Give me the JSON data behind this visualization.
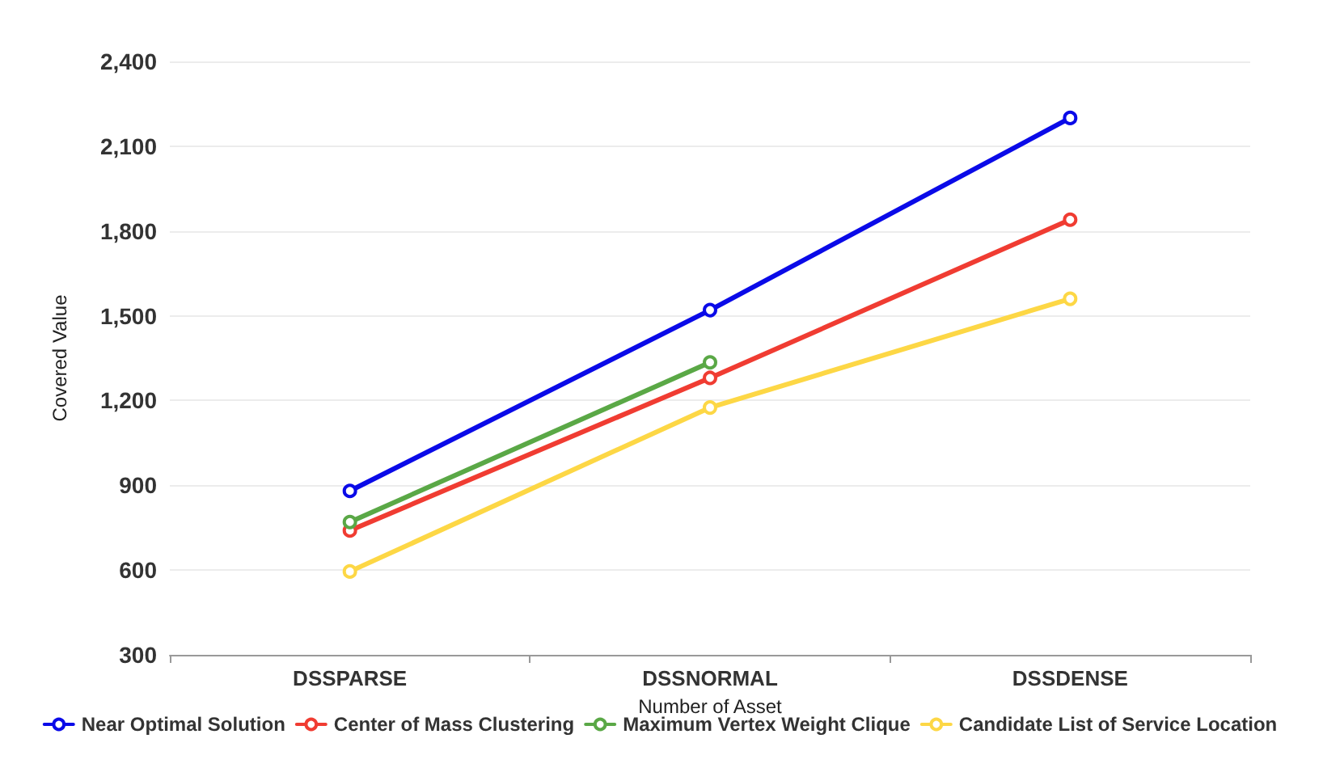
{
  "chart_data": {
    "type": "line",
    "xlabel": "Number of Asset",
    "ylabel": "Covered Value",
    "categories": [
      "DSSPARSE",
      "DSSNORMAL",
      "DSSDENSE"
    ],
    "series": [
      {
        "name": "Near Optimal Solution",
        "color": "#0a0ae8",
        "values": [
          880,
          1520,
          2200
        ]
      },
      {
        "name": "Center of Mass Clustering",
        "color": "#f03c32",
        "values": [
          740,
          1280,
          1840
        ]
      },
      {
        "name": "Maximum Vertex Weight Clique",
        "color": "#5aa846",
        "values": [
          770,
          1335,
          null
        ]
      },
      {
        "name": "Candidate List of Service Location",
        "color": "#fdd745",
        "values": [
          595,
          1175,
          1560
        ]
      }
    ],
    "ylim": [
      300,
      2400
    ],
    "yticks": [
      {
        "value": 300,
        "label": "300"
      },
      {
        "value": 600,
        "label": "600"
      },
      {
        "value": 900,
        "label": "900"
      },
      {
        "value": 1200,
        "label": "1,200"
      },
      {
        "value": 1500,
        "label": "1,500"
      },
      {
        "value": 1800,
        "label": "1,800"
      },
      {
        "value": 2100,
        "label": "2,100"
      },
      {
        "value": 2400,
        "label": "2,400"
      }
    ],
    "grid": "y",
    "legend": "bottom",
    "marker": "circle",
    "line_style": "solid"
  }
}
